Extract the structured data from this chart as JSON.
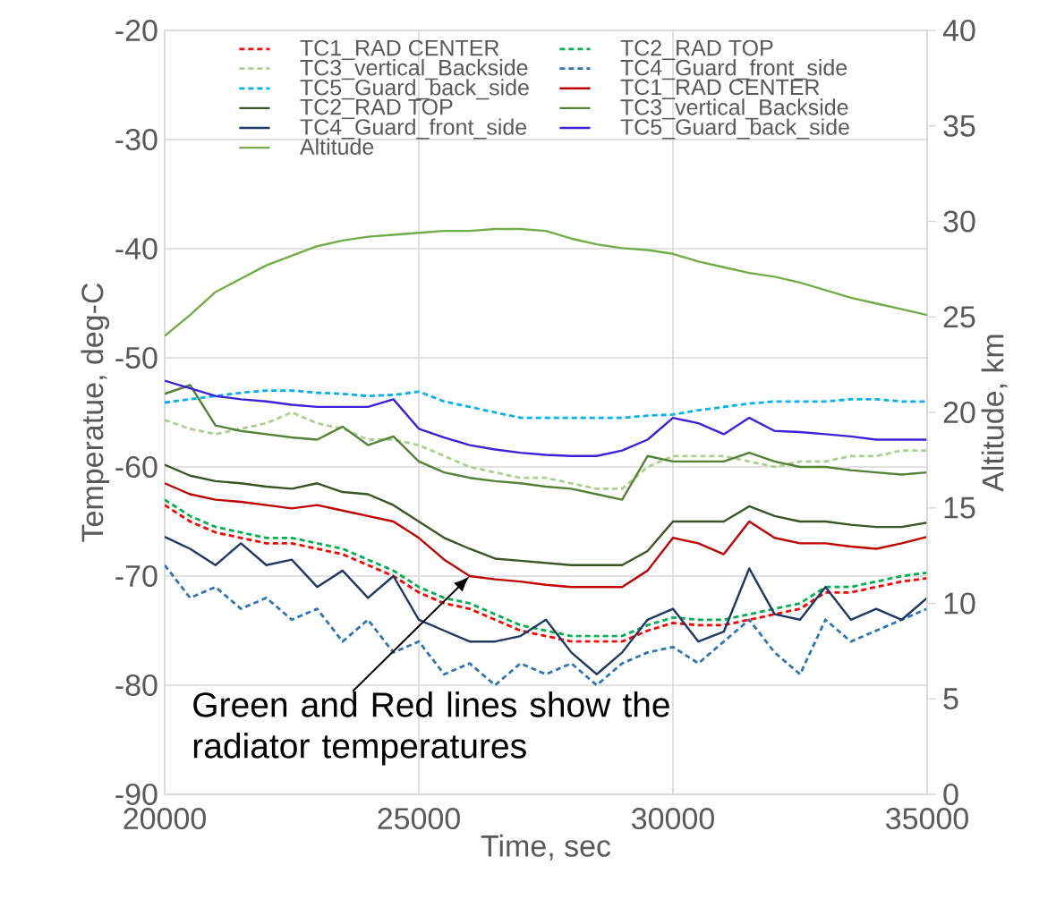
{
  "chart_data": {
    "type": "line",
    "xlabel": "Time, sec",
    "ylabel": "Temperatue, deg-C",
    "y2label": "Altitude, km",
    "x": [
      20000,
      20500,
      21000,
      21500,
      22000,
      22500,
      23000,
      23500,
      24000,
      24500,
      25000,
      25500,
      26000,
      26500,
      27000,
      27500,
      28000,
      28500,
      29000,
      29500,
      30000,
      30500,
      31000,
      31500,
      32000,
      32500,
      33000,
      33500,
      34000,
      34500,
      35000
    ],
    "xlim": [
      20000,
      35000
    ],
    "xticks": [
      20000,
      25000,
      30000,
      35000
    ],
    "ylim": [
      -90,
      -20
    ],
    "yticks": [
      -90,
      -80,
      -70,
      -60,
      -50,
      -40,
      -30,
      -20
    ],
    "y2lim": [
      0,
      40
    ],
    "y2ticks": [
      0,
      5,
      10,
      15,
      20,
      25,
      30,
      35,
      40
    ],
    "grid": true,
    "legend": "top",
    "annotations": [
      {
        "text": "Green and Red lines show the radiator temperatures",
        "x": 26000,
        "y": -70
      }
    ],
    "series": [
      {
        "name": "TC1_RAD CENTER",
        "color": "#ff0000",
        "line_style": "dashed",
        "values": [
          -63.5,
          -65,
          -66,
          -66.5,
          -67,
          -67,
          -67.5,
          -68,
          -69,
          -70,
          -71.5,
          -72.5,
          -73,
          -74,
          -75,
          -75.5,
          -76,
          -76,
          -76,
          -75,
          -74.3,
          -74.5,
          -74.5,
          -74,
          -73.5,
          -73,
          -71.5,
          -71.5,
          -71,
          -70.5,
          -70.2
        ]
      },
      {
        "name": "TC2_RAD TOP",
        "color": "#00b050",
        "line_style": "dashed",
        "values": [
          -63,
          -64.5,
          -65.5,
          -66,
          -66.5,
          -66.5,
          -67,
          -67.5,
          -68.5,
          -69.5,
          -71,
          -72,
          -72.5,
          -73.5,
          -74.5,
          -75,
          -75.5,
          -75.5,
          -75.5,
          -74.5,
          -73.8,
          -74,
          -74,
          -73.5,
          -73,
          -72.5,
          -71,
          -71,
          -70.5,
          -70,
          -69.7
        ]
      },
      {
        "name": "TC3_vertical_Backside",
        "color": "#a9d18e",
        "line_style": "dashed",
        "values": [
          -55.7,
          -56.5,
          -57,
          -56.5,
          -56,
          -55,
          -56,
          -56.5,
          -57.5,
          -57.5,
          -58,
          -59,
          -60,
          -60.5,
          -61,
          -61,
          -61.5,
          -62,
          -62,
          -60,
          -59,
          -59,
          -59,
          -59.5,
          -60,
          -59.5,
          -59.5,
          -59,
          -59,
          -58.5,
          -58.5
        ]
      },
      {
        "name": "TC4_Guard_front_side",
        "color": "#2e75b6",
        "line_style": "dashed",
        "values": [
          -69,
          -72,
          -71,
          -73,
          -72,
          -74,
          -73,
          -76,
          -74,
          -77,
          -76,
          -79,
          -78,
          -80,
          -78,
          -79,
          -78,
          -80,
          -78,
          -77,
          -76.5,
          -78,
          -76,
          -74,
          -77,
          -79,
          -74,
          -76,
          -75,
          -74,
          -73
        ]
      },
      {
        "name": "TC5_Guard_back_side",
        "color": "#00b0f0",
        "line_style": "dashed",
        "values": [
          -54.1,
          -53.8,
          -53.5,
          -53.2,
          -53,
          -53,
          -53.2,
          -53.3,
          -53.5,
          -53.4,
          -53.1,
          -54,
          -54.5,
          -55,
          -55.5,
          -55.5,
          -55.5,
          -55.5,
          -55.5,
          -55.3,
          -55.2,
          -54.8,
          -54.5,
          -54.2,
          -54,
          -54,
          -54,
          -53.8,
          -53.8,
          -54,
          -54
        ]
      },
      {
        "name": "TC1_RAD CENTER",
        "color": "#c00000",
        "line_style": "solid",
        "values": [
          -61.5,
          -62.5,
          -63,
          -63.2,
          -63.5,
          -63.8,
          -63.5,
          -64,
          -64.5,
          -65,
          -66.5,
          -68.5,
          -70,
          -70.3,
          -70.5,
          -70.8,
          -71,
          -71,
          -71,
          -69.5,
          -66.5,
          -67,
          -68,
          -65,
          -66.5,
          -67,
          -67,
          -67.3,
          -67.5,
          -67,
          -66.4
        ]
      },
      {
        "name": "TC2_RAD TOP",
        "color": "#375623",
        "line_style": "solid",
        "values": [
          -59.8,
          -60.8,
          -61.3,
          -61.5,
          -61.8,
          -62,
          -61.5,
          -62.3,
          -62.5,
          -63.5,
          -65,
          -66.5,
          -67.5,
          -68.4,
          -68.6,
          -68.8,
          -69,
          -69,
          -69,
          -67.7,
          -65,
          -65,
          -65,
          -63.6,
          -64.5,
          -65,
          -65,
          -65.3,
          -65.5,
          -65.5,
          -65.1
        ]
      },
      {
        "name": "TC3_vertical_Backside",
        "color": "#548235",
        "line_style": "solid",
        "values": [
          -53.3,
          -52.5,
          -56.2,
          -56.7,
          -57,
          -57.3,
          -57.5,
          -56.3,
          -58,
          -57.2,
          -59.5,
          -60.5,
          -61,
          -61.3,
          -61.5,
          -61.8,
          -62,
          -62.5,
          -63,
          -59,
          -59.5,
          -59.5,
          -59.5,
          -58.7,
          -59.5,
          -60,
          -60,
          -60.3,
          -60.5,
          -60.7,
          -60.5
        ]
      },
      {
        "name": "TC4_Guard_front_side",
        "color": "#203864",
        "line_style": "solid",
        "values": [
          -66.4,
          -67.5,
          -69,
          -67,
          -69,
          -68.5,
          -71,
          -69.5,
          -72,
          -70,
          -74,
          -75,
          -76,
          -76,
          -75.5,
          -74,
          -77,
          -79,
          -77,
          -74,
          -73,
          -76,
          -75.1,
          -69.3,
          -73.5,
          -74,
          -71,
          -74,
          -73,
          -74,
          -72
        ]
      },
      {
        "name": "TC5_Guard_back_side",
        "color": "#3b22d8",
        "line_style": "solid",
        "values": [
          -52.1,
          -52.8,
          -53.5,
          -53.8,
          -54,
          -54.3,
          -54.5,
          -54.5,
          -54.5,
          -53.8,
          -56.5,
          -57.3,
          -58,
          -58.4,
          -58.7,
          -58.9,
          -59,
          -59,
          -58.5,
          -57.5,
          -55.5,
          -56,
          -57,
          -55.5,
          -56.7,
          -56.8,
          -57,
          -57.2,
          -57.5,
          -57.5,
          -57.5
        ]
      },
      {
        "name": "Altitude",
        "color": "#70ad47",
        "line_style": "solid",
        "axis": "y2",
        "values": [
          24.0,
          25.1,
          26.3,
          27.0,
          27.7,
          28.2,
          28.7,
          29.0,
          29.2,
          29.3,
          29.4,
          29.5,
          29.5,
          29.6,
          29.6,
          29.5,
          29.1,
          28.8,
          28.6,
          28.5,
          28.3,
          27.9,
          27.6,
          27.3,
          27.1,
          26.8,
          26.4,
          26.0,
          25.7,
          25.4,
          25.1
        ]
      }
    ]
  }
}
